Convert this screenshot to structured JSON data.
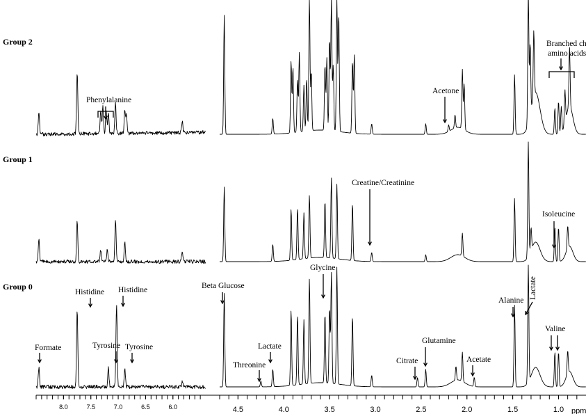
{
  "chart_data": {
    "type": "line",
    "title": "",
    "xlabel": "ppm",
    "ylabel": "",
    "xaxis": {
      "reversed": true,
      "aromatic_region": [
        8.5,
        5.4
      ],
      "aliphatic_region": [
        4.7,
        0.7
      ],
      "ticks_aromatic": [
        "8.0",
        "7.5",
        "7.0",
        "6.5",
        "6.0"
      ],
      "ticks_aliphatic": [
        "4.5",
        "4.0",
        "3.5",
        "3.0",
        "2.5",
        "2.0",
        "1.5",
        "1.0"
      ],
      "unit_label": "ppm"
    },
    "series": [
      {
        "name": "Group 2",
        "peaks": [
          {
            "ppm": 8.45,
            "h": 0.3
          },
          {
            "ppm": 7.75,
            "h": 0.8
          },
          {
            "ppm": 7.32,
            "h": 0.3
          },
          {
            "ppm": 7.28,
            "h": 0.35
          },
          {
            "ppm": 7.22,
            "h": 0.3
          },
          {
            "ppm": 7.18,
            "h": 0.25
          },
          {
            "ppm": 7.05,
            "h": 0.4
          },
          {
            "ppm": 6.88,
            "h": 0.3
          },
          {
            "ppm": 6.85,
            "h": 0.25
          },
          {
            "ppm": 5.83,
            "h": 0.15
          },
          {
            "ppm": 4.65,
            "h": 0.9
          },
          {
            "ppm": 4.12,
            "h": 0.12
          },
          {
            "ppm": 3.92,
            "h": 0.55
          },
          {
            "ppm": 3.9,
            "h": 0.5
          },
          {
            "ppm": 3.85,
            "h": 0.4
          },
          {
            "ppm": 3.83,
            "h": 0.6
          },
          {
            "ppm": 3.78,
            "h": 0.35
          },
          {
            "ppm": 3.75,
            "h": 0.4
          },
          {
            "ppm": 3.72,
            "h": 1.0
          },
          {
            "ppm": 3.7,
            "h": 0.45
          },
          {
            "ppm": 3.55,
            "h": 0.5
          },
          {
            "ppm": 3.53,
            "h": 0.55
          },
          {
            "ppm": 3.5,
            "h": 0.7
          },
          {
            "ppm": 3.48,
            "h": 1.0
          },
          {
            "ppm": 3.46,
            "h": 0.5
          },
          {
            "ppm": 3.42,
            "h": 1.0
          },
          {
            "ppm": 3.4,
            "h": 0.9
          },
          {
            "ppm": 3.25,
            "h": 0.55
          },
          {
            "ppm": 3.23,
            "h": 0.6
          },
          {
            "ppm": 3.04,
            "h": 0.08
          },
          {
            "ppm": 2.45,
            "h": 0.08
          },
          {
            "ppm": 2.2,
            "h": 0.05
          },
          {
            "ppm": 2.13,
            "h": 0.1
          },
          {
            "ppm": 2.05,
            "h": 0.45
          },
          {
            "ppm": 2.03,
            "h": 0.35
          },
          {
            "ppm": 1.48,
            "h": 0.45
          },
          {
            "ppm": 1.33,
            "h": 1.0
          },
          {
            "ppm": 1.31,
            "h": 0.55
          },
          {
            "ppm": 1.27,
            "h": 0.5
          },
          {
            "ppm": 1.04,
            "h": 0.2
          },
          {
            "ppm": 1.0,
            "h": 0.25
          },
          {
            "ppm": 0.97,
            "h": 0.2
          },
          {
            "ppm": 0.93,
            "h": 0.25
          },
          {
            "ppm": 0.88,
            "h": 0.45
          }
        ]
      },
      {
        "name": "Group 1",
        "peaks": [
          {
            "ppm": 8.45,
            "h": 0.3
          },
          {
            "ppm": 7.75,
            "h": 0.55
          },
          {
            "ppm": 7.32,
            "h": 0.15
          },
          {
            "ppm": 7.2,
            "h": 0.15
          },
          {
            "ppm": 7.05,
            "h": 0.55
          },
          {
            "ppm": 6.88,
            "h": 0.25
          },
          {
            "ppm": 5.83,
            "h": 0.15
          },
          {
            "ppm": 4.65,
            "h": 0.65
          },
          {
            "ppm": 4.12,
            "h": 0.15
          },
          {
            "ppm": 3.92,
            "h": 0.45
          },
          {
            "ppm": 3.85,
            "h": 0.45
          },
          {
            "ppm": 3.78,
            "h": 0.4
          },
          {
            "ppm": 3.72,
            "h": 0.55
          },
          {
            "ppm": 3.55,
            "h": 0.5
          },
          {
            "ppm": 3.48,
            "h": 0.7
          },
          {
            "ppm": 3.42,
            "h": 0.65
          },
          {
            "ppm": 3.25,
            "h": 0.5
          },
          {
            "ppm": 3.04,
            "h": 0.08
          },
          {
            "ppm": 2.45,
            "h": 0.06
          },
          {
            "ppm": 2.05,
            "h": 0.2
          },
          {
            "ppm": 1.48,
            "h": 0.55
          },
          {
            "ppm": 1.33,
            "h": 1.0
          },
          {
            "ppm": 1.3,
            "h": 0.2
          },
          {
            "ppm": 1.04,
            "h": 0.3
          },
          {
            "ppm": 1.0,
            "h": 0.3
          },
          {
            "ppm": 0.9,
            "h": 0.2
          }
        ]
      },
      {
        "name": "Group 0",
        "peaks": [
          {
            "ppm": 8.45,
            "h": 0.18
          },
          {
            "ppm": 7.75,
            "h": 0.75
          },
          {
            "ppm": 7.18,
            "h": 0.18
          },
          {
            "ppm": 7.03,
            "h": 0.8
          },
          {
            "ppm": 6.88,
            "h": 0.18
          },
          {
            "ppm": 5.83,
            "h": 0.05
          },
          {
            "ppm": 4.65,
            "h": 0.8
          },
          {
            "ppm": 4.25,
            "h": 0.05
          },
          {
            "ppm": 4.12,
            "h": 0.15
          },
          {
            "ppm": 3.92,
            "h": 0.65
          },
          {
            "ppm": 3.85,
            "h": 0.6
          },
          {
            "ppm": 3.78,
            "h": 0.55
          },
          {
            "ppm": 3.72,
            "h": 0.9
          },
          {
            "ppm": 3.55,
            "h": 0.6
          },
          {
            "ppm": 3.5,
            "h": 0.65
          },
          {
            "ppm": 3.48,
            "h": 0.95
          },
          {
            "ppm": 3.42,
            "h": 1.0
          },
          {
            "ppm": 3.25,
            "h": 0.6
          },
          {
            "ppm": 3.04,
            "h": 0.1
          },
          {
            "ppm": 2.54,
            "h": 0.08
          },
          {
            "ppm": 2.45,
            "h": 0.15
          },
          {
            "ppm": 2.12,
            "h": 0.12
          },
          {
            "ppm": 2.05,
            "h": 0.25
          },
          {
            "ppm": 1.92,
            "h": 0.08
          },
          {
            "ppm": 1.48,
            "h": 0.7
          },
          {
            "ppm": 1.33,
            "h": 1.0
          },
          {
            "ppm": 1.04,
            "h": 0.3
          },
          {
            "ppm": 1.0,
            "h": 0.3
          },
          {
            "ppm": 0.9,
            "h": 0.2
          }
        ]
      }
    ],
    "annotations": [
      {
        "text": "Phenylalanine",
        "ppm": 7.25,
        "series": "Group 2"
      },
      {
        "text": "Acetone",
        "ppm": 2.22,
        "series": "Group 2"
      },
      {
        "text": "Branched chain",
        "ppm": 0.95,
        "series": "Group 2"
      },
      {
        "text": "amino acids",
        "ppm": 0.95,
        "series": "Group 2"
      },
      {
        "text": "Creatine/Creatinine",
        "ppm": 3.04,
        "series": "Group 1"
      },
      {
        "text": "Isoleucine",
        "ppm": 1.0,
        "series": "Group 1"
      },
      {
        "text": "Formate",
        "ppm": 8.45,
        "series": "Group 0"
      },
      {
        "text": "Histidine",
        "ppm": 7.75,
        "series": "Group 0"
      },
      {
        "text": "Histidine",
        "ppm": 7.03,
        "series": "Group 0"
      },
      {
        "text": "Tyrosine",
        "ppm": 7.18,
        "series": "Group 0"
      },
      {
        "text": "Tyrosine",
        "ppm": 6.88,
        "series": "Group 0"
      },
      {
        "text": "Beta Glucose",
        "ppm": 4.65,
        "series": "Group 0"
      },
      {
        "text": "Threonine",
        "ppm": 4.25,
        "series": "Group 0"
      },
      {
        "text": "Lactate",
        "ppm": 4.12,
        "series": "Group 0"
      },
      {
        "text": "Glycine",
        "ppm": 3.55,
        "series": "Group 0"
      },
      {
        "text": "Citrate",
        "ppm": 2.54,
        "series": "Group 0"
      },
      {
        "text": "Glutamine",
        "ppm": 2.45,
        "series": "Group 0"
      },
      {
        "text": "Acetate",
        "ppm": 1.92,
        "series": "Group 0"
      },
      {
        "text": "Alanine",
        "ppm": 1.48,
        "series": "Group 0"
      },
      {
        "text": "Lactate",
        "ppm": 1.33,
        "series": "Group 0"
      },
      {
        "text": "Valine",
        "ppm": 1.0,
        "series": "Group 0"
      }
    ],
    "grid": false,
    "legend": "none"
  }
}
